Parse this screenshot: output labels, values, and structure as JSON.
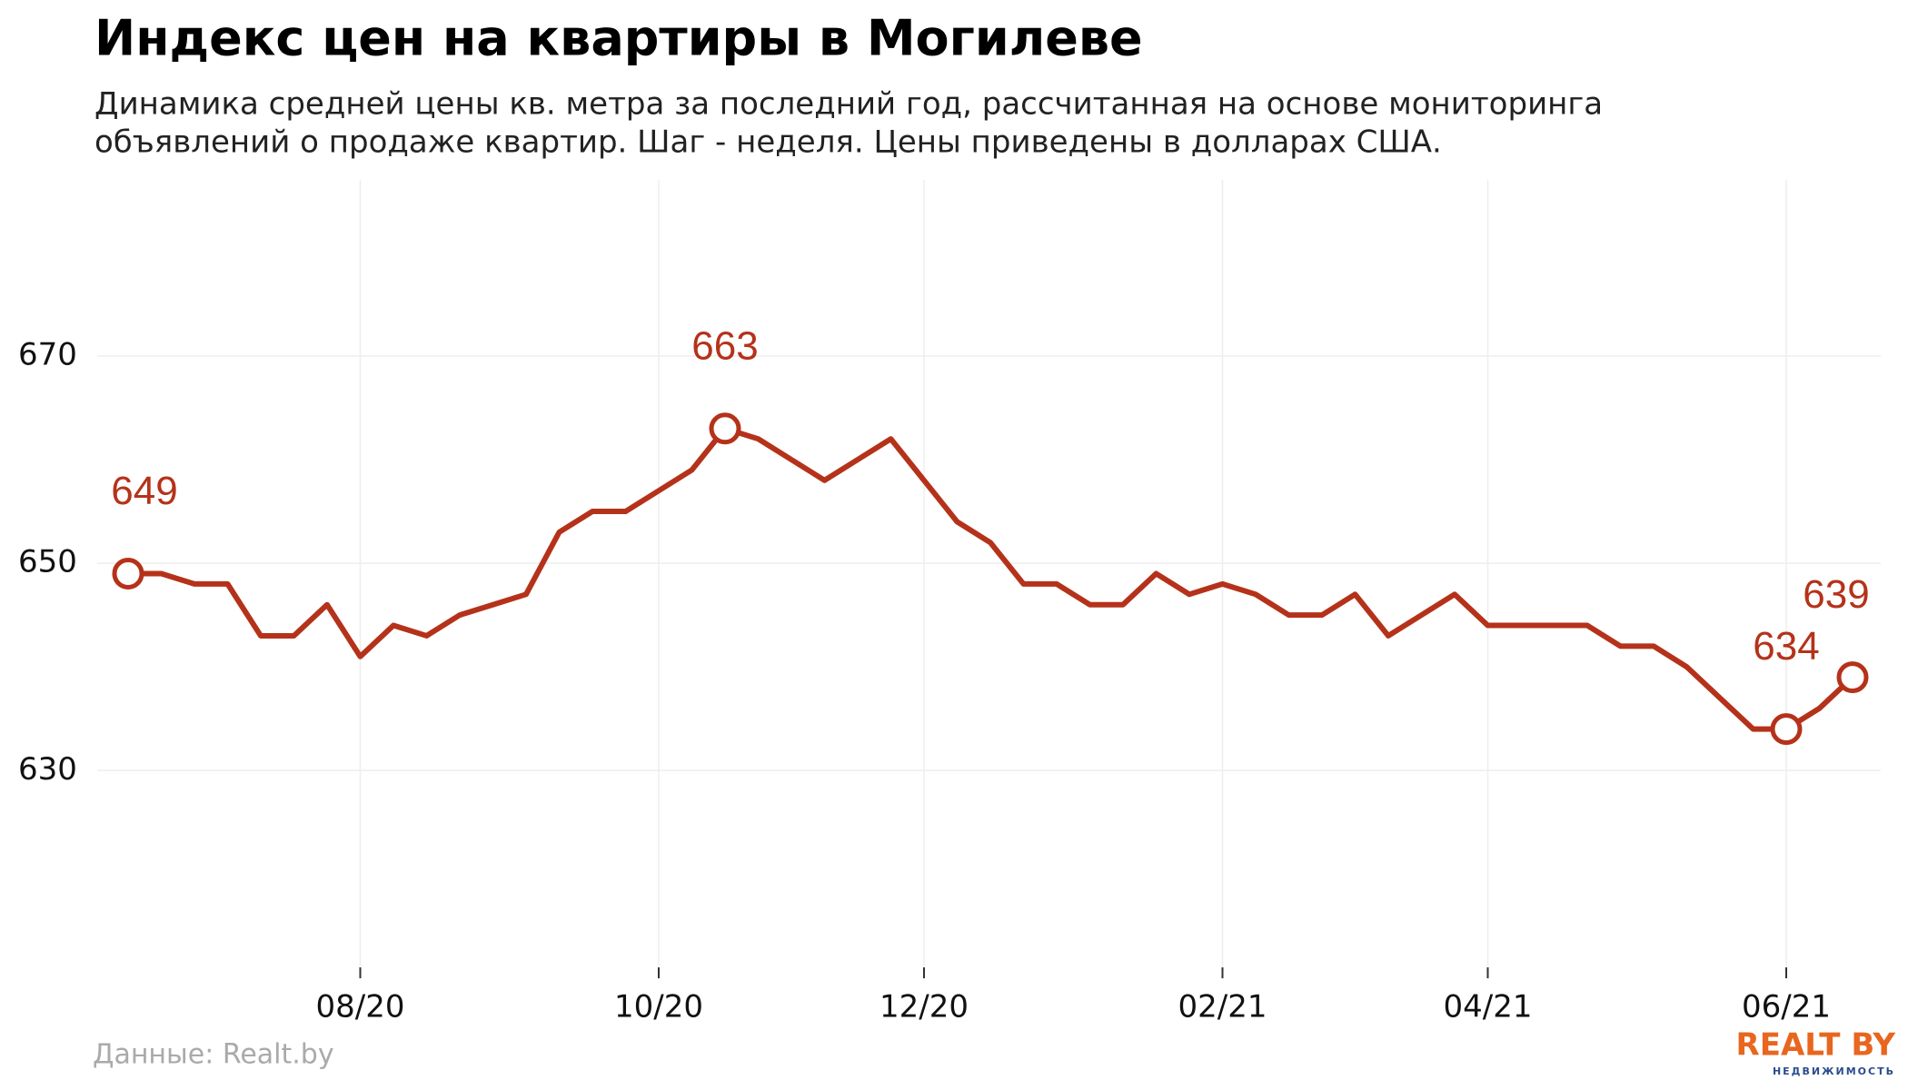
{
  "chart_data": {
    "type": "line",
    "title": "Индекс цен на квартиры в Могилеве",
    "subtitle": [
      "Динамика средней цены кв. метра за последний год, рассчитанная на основе мониторинга",
      "объявлений о продаже квартир. Шаг - неделя. Цены приведены в долларах США."
    ],
    "source": "Данные: Realt.by",
    "logo": {
      "name": "REALT BY",
      "tagline": "НЕДВИЖИМОСТЬ"
    },
    "color": "#b5321a",
    "categories": [
      null,
      null,
      null,
      null,
      null,
      null,
      null,
      "08/20",
      null,
      null,
      null,
      null,
      null,
      null,
      null,
      null,
      "10/20",
      null,
      null,
      null,
      null,
      null,
      null,
      null,
      "12/20",
      null,
      null,
      null,
      null,
      null,
      null,
      null,
      null,
      "02/21",
      null,
      null,
      null,
      null,
      null,
      null,
      null,
      "04/21",
      null,
      null,
      null,
      null,
      null,
      null,
      null,
      null,
      "06/21",
      null,
      null
    ],
    "values": [
      649,
      649,
      648,
      648,
      643,
      643,
      646,
      641,
      644,
      643,
      645,
      646,
      647,
      653,
      655,
      655,
      657,
      659,
      663,
      662,
      660,
      658,
      660,
      662,
      658,
      654,
      652,
      648,
      648,
      646,
      646,
      649,
      647,
      648,
      647,
      645,
      645,
      647,
      643,
      645,
      647,
      644,
      644,
      644,
      644,
      642,
      642,
      640,
      637,
      634,
      634,
      636,
      639
    ],
    "value_labels": [
      "649",
      null,
      null,
      null,
      null,
      null,
      null,
      null,
      null,
      null,
      null,
      null,
      null,
      null,
      null,
      null,
      null,
      null,
      "663",
      null,
      null,
      null,
      null,
      null,
      null,
      null,
      null,
      null,
      null,
      null,
      null,
      null,
      null,
      null,
      null,
      null,
      null,
      null,
      null,
      null,
      null,
      null,
      null,
      null,
      null,
      null,
      null,
      null,
      null,
      null,
      "634",
      null,
      "639"
    ],
    "ylim": [
      611,
      687
    ],
    "yticks": [
      630,
      650,
      670
    ],
    "grid": true
  }
}
